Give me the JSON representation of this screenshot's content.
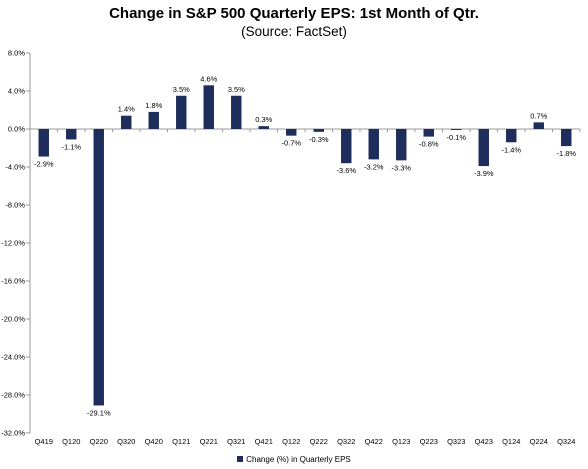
{
  "chart_data": {
    "type": "bar",
    "title": "Change in S&P 500 Quarterly EPS: 1st Month of Qtr.",
    "subtitle": "(Source: FactSet)",
    "categories": [
      "Q419",
      "Q120",
      "Q220",
      "Q320",
      "Q420",
      "Q121",
      "Q221",
      "Q321",
      "Q421",
      "Q122",
      "Q222",
      "Q322",
      "Q422",
      "Q123",
      "Q223",
      "Q323",
      "Q423",
      "Q124",
      "Q224",
      "Q324"
    ],
    "series": [
      {
        "name": "Change (%) in Quarterly EPS",
        "values": [
          -2.9,
          -1.1,
          -29.1,
          1.4,
          1.8,
          3.5,
          4.6,
          3.5,
          0.3,
          -0.7,
          -0.3,
          -3.6,
          -3.2,
          -3.3,
          -0.8,
          -0.1,
          -3.9,
          -1.4,
          0.7,
          -1.8
        ],
        "data_labels": [
          "-2.9%",
          "-1.1%",
          "-29.1%",
          "1.4%",
          "1.8%",
          "3.5%",
          "4.6%",
          "3.5%",
          "0.3%",
          "-0.7%",
          "-0.3%",
          "-3.6%",
          "-3.2%",
          "-3.3%",
          "-0.8%",
          "-0.1%",
          "-3.9%",
          "-1.4%",
          "0.7%",
          "-1.8%"
        ],
        "color": "#1f2d5c"
      }
    ],
    "ylim": [
      -32,
      8
    ],
    "yticks": [
      8,
      4,
      0,
      -4,
      -8,
      -12,
      -16,
      -20,
      -24,
      -28,
      -32
    ],
    "ytick_labels": [
      "8.0%",
      "4.0%",
      "0.0%",
      "-4.0%",
      "-8.0%",
      "-12.0%",
      "-16.0%",
      "-20.0%",
      "-24.0%",
      "-28.0%",
      "-32.0%"
    ],
    "xlabel": "",
    "ylabel": "",
    "grid": false,
    "legend_position": "bottom",
    "axis_color": "#9a9a9a"
  }
}
